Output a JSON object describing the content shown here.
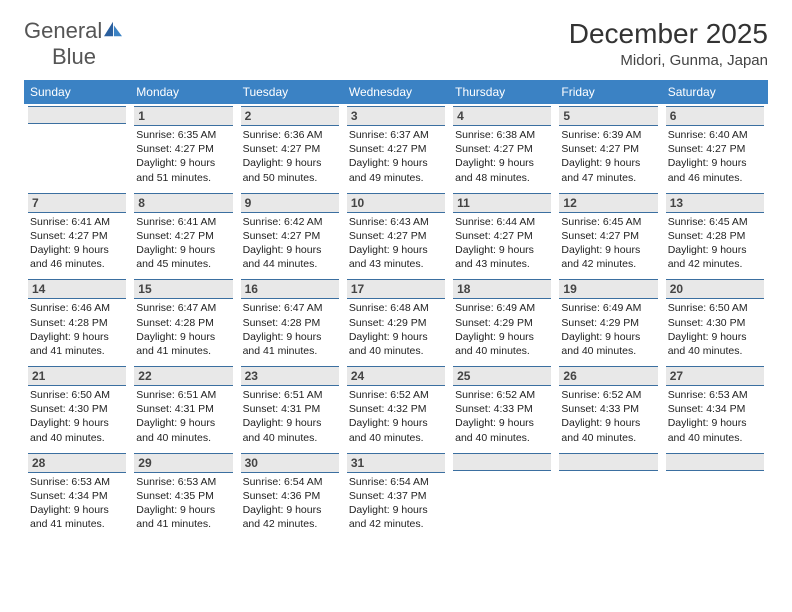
{
  "brand": {
    "part1": "General",
    "part2": "Blue"
  },
  "title": "December 2025",
  "location": "Midori, Gunma, Japan",
  "colors": {
    "header_bg": "#3b82c4",
    "header_text": "#ffffff",
    "daynum_bg": "#e8e8e8",
    "daynum_border": "#3b6fa0",
    "body_text": "#222222"
  },
  "weekdays": [
    "Sunday",
    "Monday",
    "Tuesday",
    "Wednesday",
    "Thursday",
    "Friday",
    "Saturday"
  ],
  "weeks": [
    [
      {
        "day": "",
        "lines": []
      },
      {
        "day": "1",
        "lines": [
          "Sunrise: 6:35 AM",
          "Sunset: 4:27 PM",
          "Daylight: 9 hours",
          "and 51 minutes."
        ]
      },
      {
        "day": "2",
        "lines": [
          "Sunrise: 6:36 AM",
          "Sunset: 4:27 PM",
          "Daylight: 9 hours",
          "and 50 minutes."
        ]
      },
      {
        "day": "3",
        "lines": [
          "Sunrise: 6:37 AM",
          "Sunset: 4:27 PM",
          "Daylight: 9 hours",
          "and 49 minutes."
        ]
      },
      {
        "day": "4",
        "lines": [
          "Sunrise: 6:38 AM",
          "Sunset: 4:27 PM",
          "Daylight: 9 hours",
          "and 48 minutes."
        ]
      },
      {
        "day": "5",
        "lines": [
          "Sunrise: 6:39 AM",
          "Sunset: 4:27 PM",
          "Daylight: 9 hours",
          "and 47 minutes."
        ]
      },
      {
        "day": "6",
        "lines": [
          "Sunrise: 6:40 AM",
          "Sunset: 4:27 PM",
          "Daylight: 9 hours",
          "and 46 minutes."
        ]
      }
    ],
    [
      {
        "day": "7",
        "lines": [
          "Sunrise: 6:41 AM",
          "Sunset: 4:27 PM",
          "Daylight: 9 hours",
          "and 46 minutes."
        ]
      },
      {
        "day": "8",
        "lines": [
          "Sunrise: 6:41 AM",
          "Sunset: 4:27 PM",
          "Daylight: 9 hours",
          "and 45 minutes."
        ]
      },
      {
        "day": "9",
        "lines": [
          "Sunrise: 6:42 AM",
          "Sunset: 4:27 PM",
          "Daylight: 9 hours",
          "and 44 minutes."
        ]
      },
      {
        "day": "10",
        "lines": [
          "Sunrise: 6:43 AM",
          "Sunset: 4:27 PM",
          "Daylight: 9 hours",
          "and 43 minutes."
        ]
      },
      {
        "day": "11",
        "lines": [
          "Sunrise: 6:44 AM",
          "Sunset: 4:27 PM",
          "Daylight: 9 hours",
          "and 43 minutes."
        ]
      },
      {
        "day": "12",
        "lines": [
          "Sunrise: 6:45 AM",
          "Sunset: 4:27 PM",
          "Daylight: 9 hours",
          "and 42 minutes."
        ]
      },
      {
        "day": "13",
        "lines": [
          "Sunrise: 6:45 AM",
          "Sunset: 4:28 PM",
          "Daylight: 9 hours",
          "and 42 minutes."
        ]
      }
    ],
    [
      {
        "day": "14",
        "lines": [
          "Sunrise: 6:46 AM",
          "Sunset: 4:28 PM",
          "Daylight: 9 hours",
          "and 41 minutes."
        ]
      },
      {
        "day": "15",
        "lines": [
          "Sunrise: 6:47 AM",
          "Sunset: 4:28 PM",
          "Daylight: 9 hours",
          "and 41 minutes."
        ]
      },
      {
        "day": "16",
        "lines": [
          "Sunrise: 6:47 AM",
          "Sunset: 4:28 PM",
          "Daylight: 9 hours",
          "and 41 minutes."
        ]
      },
      {
        "day": "17",
        "lines": [
          "Sunrise: 6:48 AM",
          "Sunset: 4:29 PM",
          "Daylight: 9 hours",
          "and 40 minutes."
        ]
      },
      {
        "day": "18",
        "lines": [
          "Sunrise: 6:49 AM",
          "Sunset: 4:29 PM",
          "Daylight: 9 hours",
          "and 40 minutes."
        ]
      },
      {
        "day": "19",
        "lines": [
          "Sunrise: 6:49 AM",
          "Sunset: 4:29 PM",
          "Daylight: 9 hours",
          "and 40 minutes."
        ]
      },
      {
        "day": "20",
        "lines": [
          "Sunrise: 6:50 AM",
          "Sunset: 4:30 PM",
          "Daylight: 9 hours",
          "and 40 minutes."
        ]
      }
    ],
    [
      {
        "day": "21",
        "lines": [
          "Sunrise: 6:50 AM",
          "Sunset: 4:30 PM",
          "Daylight: 9 hours",
          "and 40 minutes."
        ]
      },
      {
        "day": "22",
        "lines": [
          "Sunrise: 6:51 AM",
          "Sunset: 4:31 PM",
          "Daylight: 9 hours",
          "and 40 minutes."
        ]
      },
      {
        "day": "23",
        "lines": [
          "Sunrise: 6:51 AM",
          "Sunset: 4:31 PM",
          "Daylight: 9 hours",
          "and 40 minutes."
        ]
      },
      {
        "day": "24",
        "lines": [
          "Sunrise: 6:52 AM",
          "Sunset: 4:32 PM",
          "Daylight: 9 hours",
          "and 40 minutes."
        ]
      },
      {
        "day": "25",
        "lines": [
          "Sunrise: 6:52 AM",
          "Sunset: 4:33 PM",
          "Daylight: 9 hours",
          "and 40 minutes."
        ]
      },
      {
        "day": "26",
        "lines": [
          "Sunrise: 6:52 AM",
          "Sunset: 4:33 PM",
          "Daylight: 9 hours",
          "and 40 minutes."
        ]
      },
      {
        "day": "27",
        "lines": [
          "Sunrise: 6:53 AM",
          "Sunset: 4:34 PM",
          "Daylight: 9 hours",
          "and 40 minutes."
        ]
      }
    ],
    [
      {
        "day": "28",
        "lines": [
          "Sunrise: 6:53 AM",
          "Sunset: 4:34 PM",
          "Daylight: 9 hours",
          "and 41 minutes."
        ]
      },
      {
        "day": "29",
        "lines": [
          "Sunrise: 6:53 AM",
          "Sunset: 4:35 PM",
          "Daylight: 9 hours",
          "and 41 minutes."
        ]
      },
      {
        "day": "30",
        "lines": [
          "Sunrise: 6:54 AM",
          "Sunset: 4:36 PM",
          "Daylight: 9 hours",
          "and 42 minutes."
        ]
      },
      {
        "day": "31",
        "lines": [
          "Sunrise: 6:54 AM",
          "Sunset: 4:37 PM",
          "Daylight: 9 hours",
          "and 42 minutes."
        ]
      },
      {
        "day": "",
        "lines": []
      },
      {
        "day": "",
        "lines": []
      },
      {
        "day": "",
        "lines": []
      }
    ]
  ]
}
